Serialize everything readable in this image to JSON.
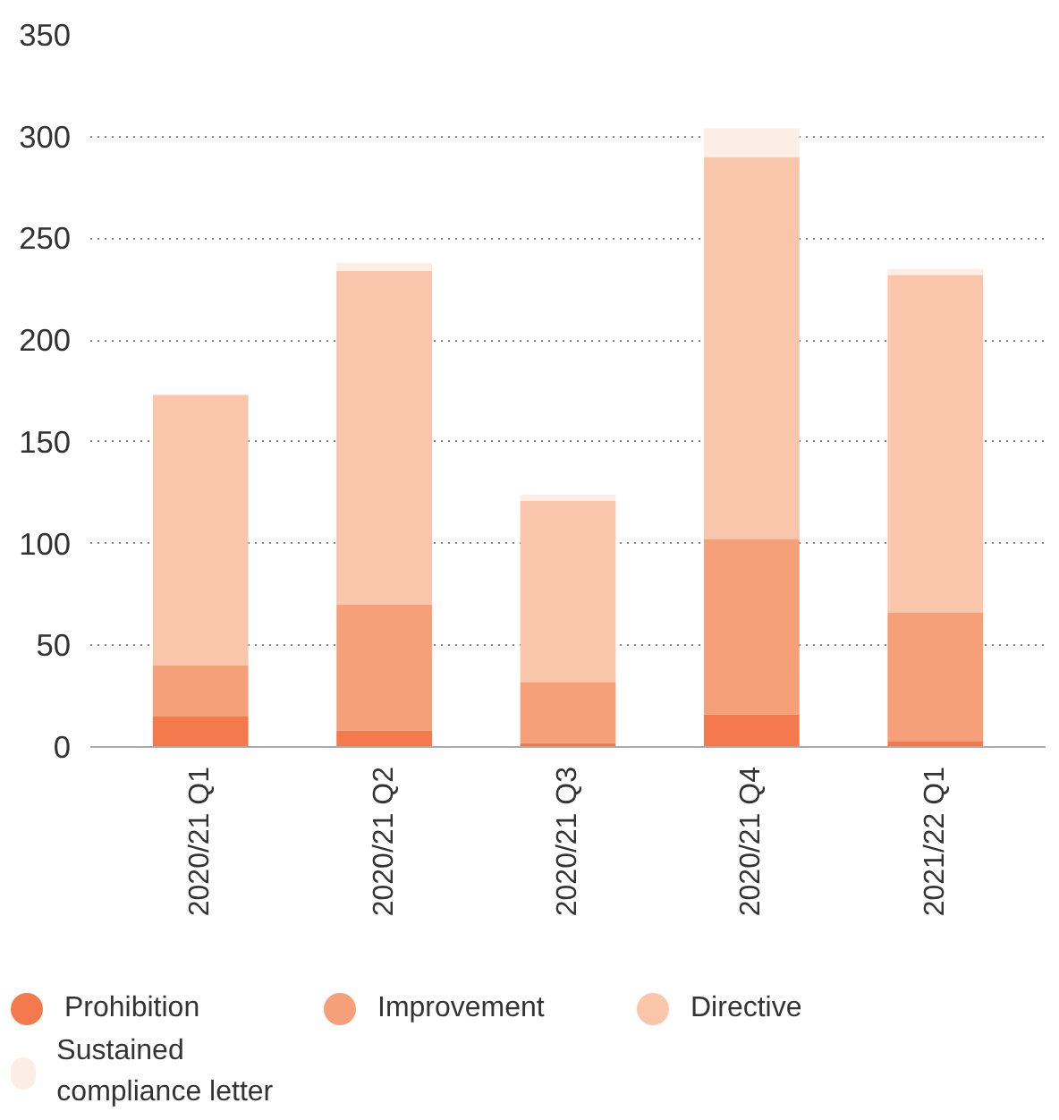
{
  "chart_data": {
    "type": "bar",
    "stacked": true,
    "categories": [
      "2020/21 Q1",
      "2020/21 Q2",
      "2020/21 Q3",
      "2020/21 Q4",
      "2021/22 Q1"
    ],
    "series": [
      {
        "name": "Prohibition",
        "color": "#f47a4d",
        "values": [
          15,
          8,
          2,
          16,
          3
        ]
      },
      {
        "name": "Improvement",
        "color": "#f6a07a",
        "values": [
          25,
          62,
          30,
          86,
          63
        ]
      },
      {
        "name": "Directive",
        "color": "#fac6ab",
        "values": [
          133,
          164,
          89,
          188,
          166
        ]
      },
      {
        "name": "Sustained compliance letter",
        "color": "#fdeee5",
        "values": [
          0,
          4,
          3,
          14,
          3
        ]
      }
    ],
    "ylim": [
      0,
      350
    ],
    "yticks": [
      0,
      50,
      100,
      150,
      200,
      250,
      300,
      350
    ],
    "grid": "y",
    "legend": "bottom"
  }
}
